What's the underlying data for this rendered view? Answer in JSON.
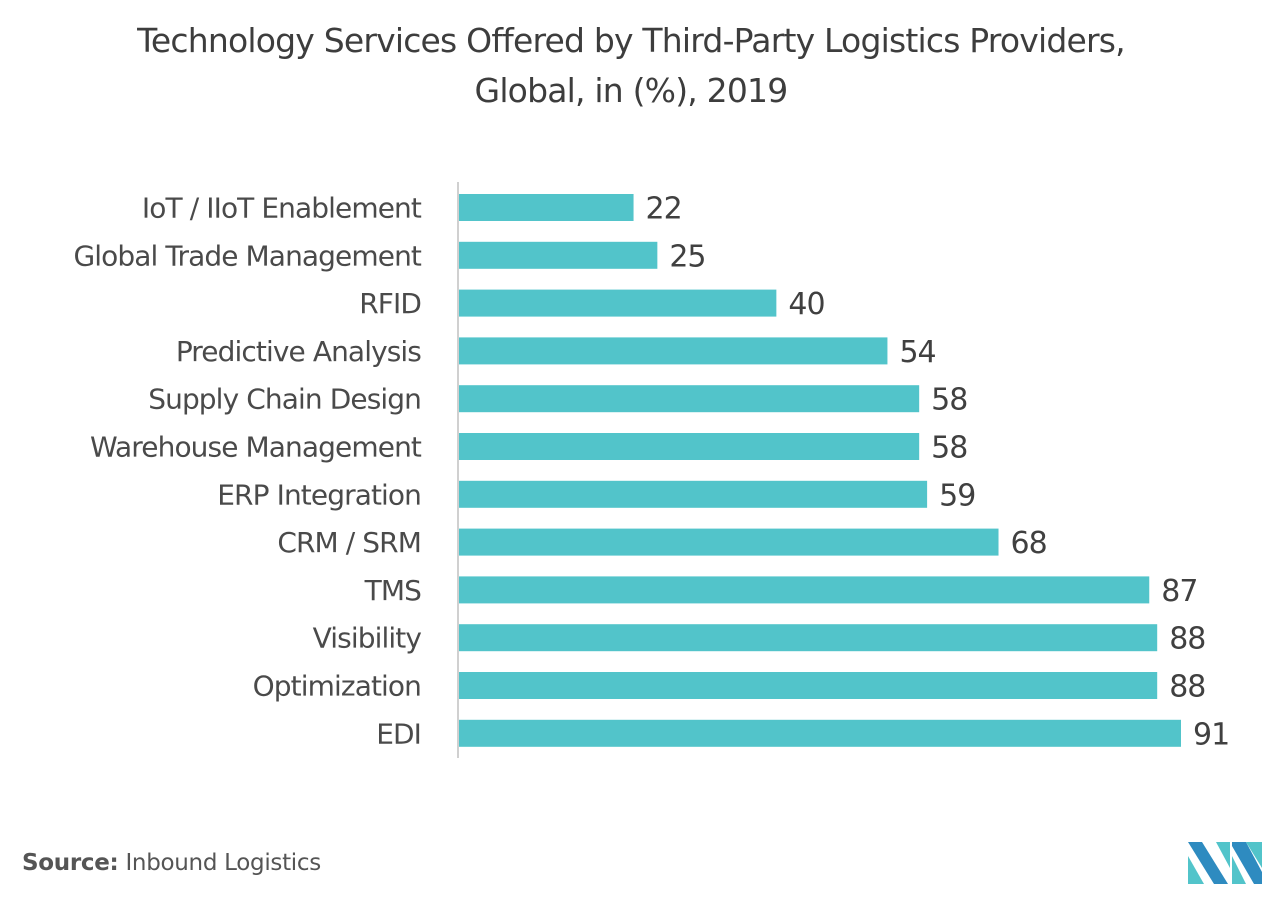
{
  "chart_data": {
    "type": "bar",
    "orientation": "horizontal",
    "title": "Technology Services Offered by Third-Party Logistics Providers, Global, in (%), 2019",
    "title_lines": [
      "Technology Services Offered by Third-Party Logistics Providers,",
      "Global, in (%), 2019"
    ],
    "categories": [
      "IoT / IIoT Enablement",
      "Global Trade Management",
      "RFID",
      "Predictive Analysis",
      "Supply Chain Design",
      "Warehouse Management",
      "ERP Integration",
      "CRM / SRM",
      "TMS",
      "Visibility",
      "Optimization",
      "EDI"
    ],
    "values": [
      22,
      25,
      40,
      54,
      58,
      58,
      59,
      68,
      87,
      88,
      88,
      91
    ],
    "xlabel": "",
    "ylabel": "",
    "xlim": [
      0,
      91
    ],
    "grid": false,
    "data_labels": true,
    "bar_color": "#52c4ca",
    "legend": "none"
  },
  "footer": {
    "source_label": "Source:",
    "source_text": "Inbound Logistics"
  },
  "logo": {
    "name": "mordor-intelligence-logo",
    "colors": [
      "#2e8bc0",
      "#52c4ca"
    ]
  }
}
